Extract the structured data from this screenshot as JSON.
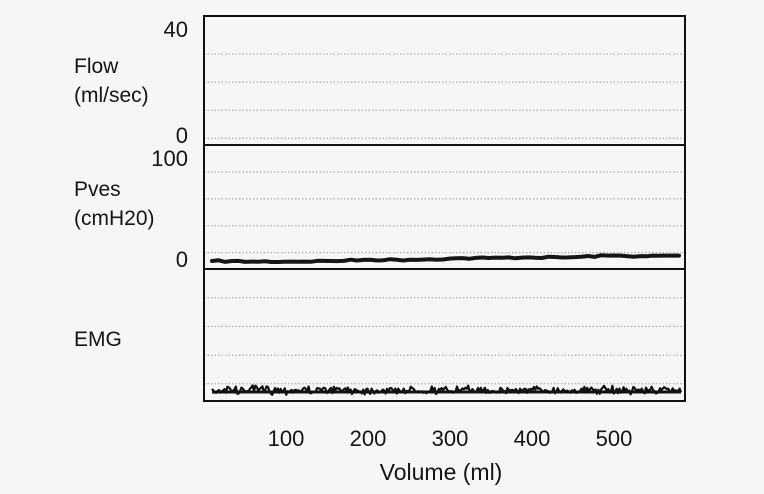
{
  "chart_data": {
    "type": "line",
    "xlabel": "Volume (ml)",
    "x_ticks": [
      100,
      200,
      300,
      400,
      500
    ],
    "xlim": [
      0,
      600
    ],
    "grid": true,
    "panels": [
      {
        "name": "flow",
        "ylabel_lines": [
          "Flow",
          "(ml/sec)"
        ],
        "ylim": [
          0,
          40
        ],
        "y_tick_labels": {
          "top": "40",
          "bottom": "0"
        },
        "series": []
      },
      {
        "name": "pves",
        "ylabel_lines": [
          "Pves",
          "(cmH20)"
        ],
        "ylim": [
          0,
          100
        ],
        "y_tick_labels": {
          "top": "100",
          "bottom": "0"
        },
        "series": [
          {
            "x": [
              0,
              50,
              100,
              150,
              200,
              250,
              300,
              350,
              400,
              450,
              500,
              550,
              590
            ],
            "y": [
              5,
              4.5,
              4.5,
              5,
              6,
              6,
              7,
              7.5,
              8,
              8,
              9.5,
              9,
              9.5
            ]
          }
        ]
      },
      {
        "name": "emg",
        "ylabel_lines": [
          "EMG"
        ],
        "ylim": [
          0,
          1
        ],
        "y_tick_labels": {
          "top": "",
          "bottom": ""
        },
        "series": [
          {
            "baseline": 0.07,
            "amplitude": 0.05
          }
        ]
      }
    ]
  }
}
